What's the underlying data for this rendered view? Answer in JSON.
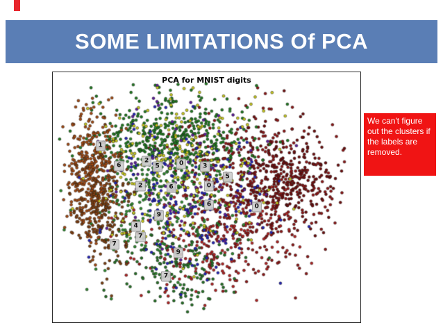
{
  "slide": {
    "title": "SOME LIMITATIONS Of PCA",
    "banner_color": "#5a7eb5",
    "accent_red": "#e8262d",
    "background_color": "#ffffff"
  },
  "callout": {
    "text": "We can't figure out the clusters if the labels are removed.",
    "bg_color": "#f01414",
    "text_color": "#ffffff"
  },
  "chart_data": {
    "type": "scatter",
    "title": "PCA for MNIST digits",
    "xlabel": "",
    "ylabel": "",
    "axes": "hidden",
    "grid": false,
    "legend": "none",
    "description": "2D PCA projection of MNIST digit images: a dense roughly elliptical cloud of ~3000 small points colored by digit class, with gray boxed digit labels marking cluster centers. Clusters are heavily overlapping.",
    "point_radius": 2.0,
    "point_edge_color": "#1a1a1a",
    "random_seed": 42,
    "clusters": [
      {
        "name": "dark-red-core",
        "color": "#8f1616",
        "center": [
          0.63,
          0.47
        ],
        "spread": [
          0.14,
          0.15
        ],
        "count": 520
      },
      {
        "name": "maroon-right",
        "color": "#6f0d0d",
        "center": [
          0.76,
          0.42
        ],
        "spread": [
          0.08,
          0.11
        ],
        "count": 260
      },
      {
        "name": "red-bottom",
        "color": "#b22222",
        "center": [
          0.5,
          0.68
        ],
        "spread": [
          0.13,
          0.11
        ],
        "count": 230
      },
      {
        "name": "green-top",
        "color": "#1f7a1f",
        "center": [
          0.38,
          0.26
        ],
        "spread": [
          0.13,
          0.09
        ],
        "count": 430
      },
      {
        "name": "green-mid",
        "color": "#2e8b2e",
        "center": [
          0.34,
          0.52
        ],
        "spread": [
          0.11,
          0.13
        ],
        "count": 260
      },
      {
        "name": "green-bottom",
        "color": "#267326",
        "center": [
          0.42,
          0.78
        ],
        "spread": [
          0.1,
          0.08
        ],
        "count": 150
      },
      {
        "name": "brown-left",
        "color": "#a34a12",
        "center": [
          0.125,
          0.4
        ],
        "spread": [
          0.04,
          0.13
        ],
        "count": 360
      },
      {
        "name": "brown-left-lower",
        "color": "#7d3f10",
        "center": [
          0.16,
          0.56
        ],
        "spread": [
          0.055,
          0.11
        ],
        "count": 200
      },
      {
        "name": "blue",
        "color": "#2323b8",
        "center": [
          0.44,
          0.5
        ],
        "spread": [
          0.14,
          0.15
        ],
        "count": 190
      },
      {
        "name": "purple",
        "color": "#5e1d9e",
        "center": [
          0.45,
          0.4
        ],
        "spread": [
          0.13,
          0.13
        ],
        "count": 90
      },
      {
        "name": "yellow",
        "color": "#c9c91e",
        "center": [
          0.4,
          0.38
        ],
        "spread": [
          0.16,
          0.18
        ],
        "count": 230
      }
    ],
    "digit_labels": [
      {
        "digit": "1",
        "x": 0.155,
        "y": 0.295
      },
      {
        "digit": "6",
        "x": 0.215,
        "y": 0.375
      },
      {
        "digit": "2",
        "x": 0.305,
        "y": 0.355
      },
      {
        "digit": "5",
        "x": 0.34,
        "y": 0.378
      },
      {
        "digit": "0",
        "x": 0.418,
        "y": 0.368
      },
      {
        "digit": "3",
        "x": 0.495,
        "y": 0.378
      },
      {
        "digit": "5",
        "x": 0.568,
        "y": 0.42
      },
      {
        "digit": "2",
        "x": 0.285,
        "y": 0.455
      },
      {
        "digit": "6",
        "x": 0.385,
        "y": 0.46
      },
      {
        "digit": "0",
        "x": 0.508,
        "y": 0.455
      },
      {
        "digit": "6",
        "x": 0.508,
        "y": 0.53
      },
      {
        "digit": "0",
        "x": 0.663,
        "y": 0.54
      },
      {
        "digit": "9",
        "x": 0.345,
        "y": 0.573
      },
      {
        "digit": "4",
        "x": 0.27,
        "y": 0.618
      },
      {
        "digit": "7",
        "x": 0.285,
        "y": 0.658
      },
      {
        "digit": "7",
        "x": 0.2,
        "y": 0.688
      },
      {
        "digit": "9",
        "x": 0.408,
        "y": 0.722
      },
      {
        "digit": "7",
        "x": 0.368,
        "y": 0.818
      }
    ]
  }
}
